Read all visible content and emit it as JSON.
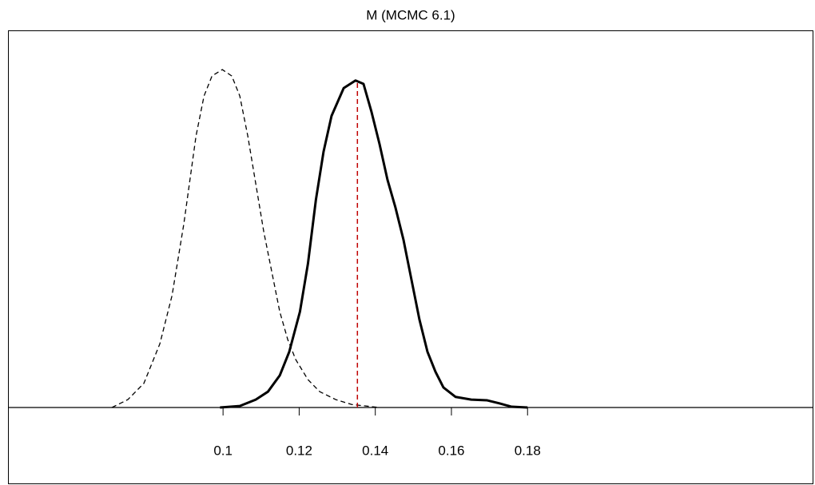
{
  "chart_data": {
    "type": "line",
    "title": "M (MCMC 6.1)",
    "xlim": [
      0.0435,
      0.2551
    ],
    "ylim": [
      0,
      1
    ],
    "xticks": [
      0.1,
      0.12,
      0.14,
      0.16,
      0.18
    ],
    "series": [
      {
        "color": "#000000",
        "dash": "dashed",
        "line_width": 1.3,
        "x": [
          0.0708,
          0.075,
          0.0792,
          0.0834,
          0.0866,
          0.0897,
          0.0929,
          0.095,
          0.0971,
          0.0998,
          0.1023,
          0.1044,
          0.1065,
          0.1086,
          0.1107,
          0.1128,
          0.1149,
          0.117,
          0.1191,
          0.1223,
          0.1254,
          0.1296,
          0.1338,
          0.1411
        ],
        "values": [
          0,
          0.021,
          0.064,
          0.169,
          0.297,
          0.487,
          0.72,
          0.826,
          0.879,
          0.896,
          0.879,
          0.826,
          0.72,
          0.593,
          0.466,
          0.36,
          0.254,
          0.18,
          0.127,
          0.074,
          0.042,
          0.021,
          0.008,
          0
        ]
      },
      {
        "color": "#000000",
        "dash": "solid",
        "line_width": 3,
        "x": [
          0.0992,
          0.1044,
          0.1086,
          0.1118,
          0.1149,
          0.1174,
          0.1202,
          0.1223,
          0.1244,
          0.1264,
          0.1285,
          0.1317,
          0.1348,
          0.1369,
          0.139,
          0.1411,
          0.1432,
          0.1453,
          0.1474,
          0.1495,
          0.1516,
          0.1537,
          0.1558,
          0.1579,
          0.1611,
          0.1652,
          0.1694,
          0.1726,
          0.1758,
          0.18
        ],
        "values": [
          0,
          0.004,
          0.021,
          0.042,
          0.085,
          0.148,
          0.254,
          0.381,
          0.551,
          0.678,
          0.773,
          0.847,
          0.867,
          0.858,
          0.784,
          0.699,
          0.604,
          0.53,
          0.445,
          0.339,
          0.233,
          0.148,
          0.095,
          0.053,
          0.028,
          0.021,
          0.019,
          0.011,
          0.002,
          0
        ]
      }
    ],
    "reference_line": {
      "x": 0.1353,
      "color": "#c00000",
      "dash": "dashed"
    }
  }
}
